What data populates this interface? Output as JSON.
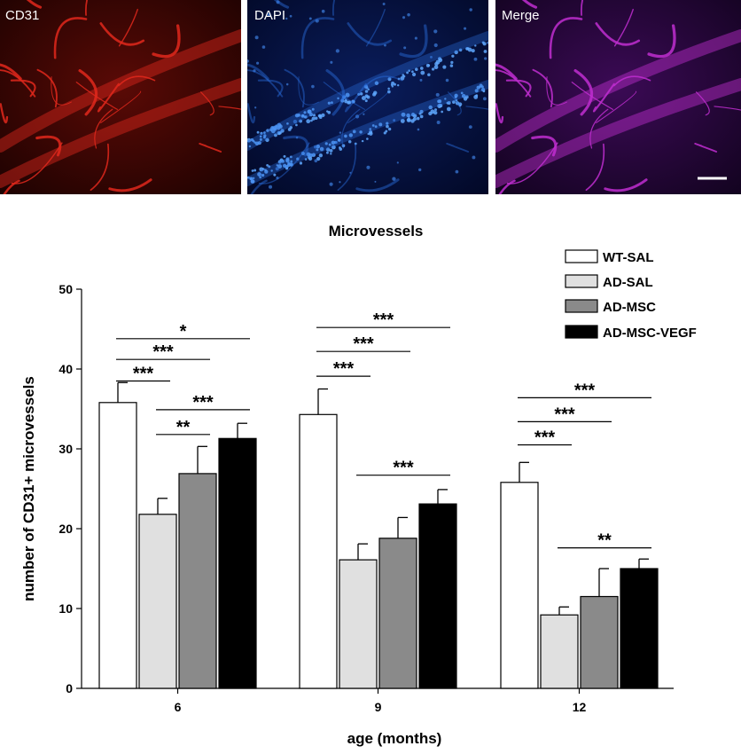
{
  "micrographs": [
    {
      "label": "CD31",
      "color": "#e0281c"
    },
    {
      "label": "DAPI",
      "color": "#2a6fe0"
    },
    {
      "label": "Merge",
      "color": "#c02ed0"
    }
  ],
  "chart_data": {
    "type": "bar",
    "title": "Microvessels",
    "xlabel": "age (months)",
    "ylabel": "number of CD31+ microvessels",
    "ylim": [
      0,
      50
    ],
    "yticks": [
      0,
      10,
      20,
      30,
      40,
      50
    ],
    "categories": [
      "6",
      "9",
      "12"
    ],
    "legend_position": "top-right",
    "series": [
      {
        "name": "WT-SAL",
        "values": [
          35.8,
          34.3,
          25.8
        ],
        "errors": [
          2.5,
          3.2,
          2.5
        ],
        "color": "#ffffff"
      },
      {
        "name": "AD-SAL",
        "values": [
          21.8,
          16.1,
          9.2
        ],
        "errors": [
          2.0,
          2.0,
          1.0
        ],
        "color": "#e0e0e0"
      },
      {
        "name": "AD-MSC",
        "values": [
          26.9,
          18.8,
          11.5
        ],
        "errors": [
          3.4,
          2.6,
          3.5
        ],
        "color": "#8a8a8a"
      },
      {
        "name": "AD-MSC-VEGF",
        "values": [
          31.3,
          23.1,
          15.0
        ],
        "errors": [
          1.9,
          1.8,
          1.2
        ],
        "color": "#000000"
      }
    ],
    "significance": [
      {
        "group": 0,
        "from": 0,
        "to": 3,
        "y": 43.8,
        "label": "*"
      },
      {
        "group": 0,
        "from": 0,
        "to": 2,
        "y": 41.2,
        "label": "***"
      },
      {
        "group": 0,
        "from": 0,
        "to": 1,
        "y": 38.5,
        "label": "***"
      },
      {
        "group": 0,
        "from": 1,
        "to": 3,
        "y": 34.9,
        "label": "***"
      },
      {
        "group": 0,
        "from": 1,
        "to": 2,
        "y": 31.8,
        "label": "**"
      },
      {
        "group": 1,
        "from": 0,
        "to": 3,
        "y": 45.2,
        "label": "***"
      },
      {
        "group": 1,
        "from": 0,
        "to": 2,
        "y": 42.2,
        "label": "***"
      },
      {
        "group": 1,
        "from": 0,
        "to": 1,
        "y": 39.1,
        "label": "***"
      },
      {
        "group": 1,
        "from": 1,
        "to": 3,
        "y": 26.7,
        "label": "***"
      },
      {
        "group": 2,
        "from": 0,
        "to": 3,
        "y": 36.4,
        "label": "***"
      },
      {
        "group": 2,
        "from": 0,
        "to": 2,
        "y": 33.4,
        "label": "***"
      },
      {
        "group": 2,
        "from": 0,
        "to": 1,
        "y": 30.5,
        "label": "***"
      },
      {
        "group": 2,
        "from": 1,
        "to": 3,
        "y": 17.6,
        "label": "**"
      }
    ]
  }
}
